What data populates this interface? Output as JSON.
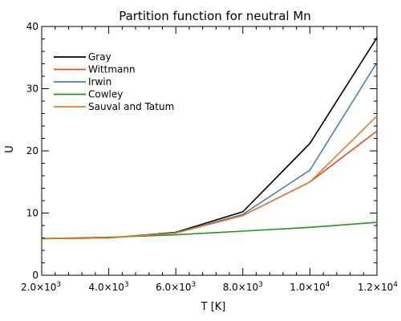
{
  "chart_data": {
    "type": "line",
    "title": "Partition function for neutral Mn",
    "xlabel": "T [K]",
    "ylabel": "U",
    "xlim": [
      2000,
      12000
    ],
    "ylim": [
      0,
      40
    ],
    "x_ticks": [
      2000,
      4000,
      6000,
      8000,
      10000,
      12000
    ],
    "x_tick_labels": [
      {
        "mantissa": "2.0",
        "exp": "3"
      },
      {
        "mantissa": "4.0",
        "exp": "3"
      },
      {
        "mantissa": "6.0",
        "exp": "3"
      },
      {
        "mantissa": "8.0",
        "exp": "3"
      },
      {
        "mantissa": "1.0",
        "exp": "4"
      },
      {
        "mantissa": "1.2",
        "exp": "4"
      }
    ],
    "y_ticks": [
      0,
      10,
      20,
      30,
      40
    ],
    "y_tick_labels": [
      "0",
      "10",
      "20",
      "30",
      "40"
    ],
    "grid": false,
    "legend_position": "top-left",
    "x": [
      2000,
      4000,
      6000,
      8000,
      10000,
      12000
    ],
    "series": [
      {
        "name": "Gray",
        "color": "#000000",
        "values": [
          5.9,
          6.0,
          6.9,
          10.2,
          21.2,
          38.2
        ]
      },
      {
        "name": "Wittmann",
        "color": "#e0501e",
        "values": [
          5.9,
          6.0,
          6.8,
          9.6,
          15.0,
          23.2
        ]
      },
      {
        "name": "Irwin",
        "color": "#4682b4",
        "values": [
          5.9,
          6.0,
          6.8,
          9.8,
          16.9,
          34.2
        ]
      },
      {
        "name": "Cowley",
        "color": "#1e9620",
        "values": [
          5.9,
          6.1,
          6.5,
          7.1,
          7.7,
          8.5
        ]
      },
      {
        "name": "Sauval and Tatum",
        "color": "#e07b32",
        "values": [
          5.9,
          6.0,
          6.8,
          9.6,
          15.0,
          25.6
        ]
      }
    ]
  }
}
